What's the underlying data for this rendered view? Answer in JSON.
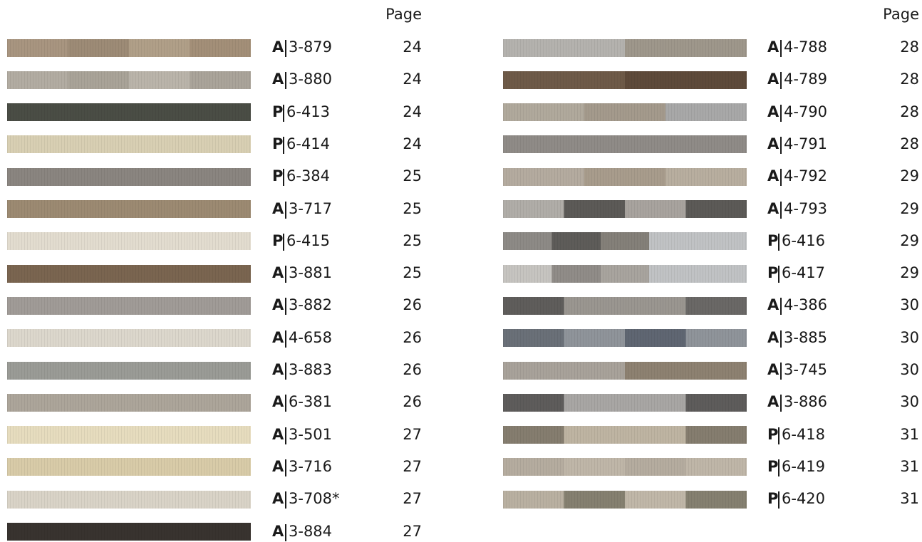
{
  "columns": [
    {
      "header": "Page",
      "rows": [
        {
          "prefix": "A",
          "code": "3-879",
          "page": 24
        },
        {
          "prefix": "A",
          "code": "3-880",
          "page": 24
        },
        {
          "prefix": "P",
          "code": "6-413",
          "page": 24
        },
        {
          "prefix": "P",
          "code": "6-414",
          "page": 24
        },
        {
          "prefix": "P",
          "code": "6-384",
          "page": 25
        },
        {
          "prefix": "A",
          "code": "3-717",
          "page": 25
        },
        {
          "prefix": "P",
          "code": "6-415",
          "page": 25
        },
        {
          "prefix": "A",
          "code": "3-881",
          "page": 25
        },
        {
          "prefix": "A",
          "code": "3-882",
          "page": 26
        },
        {
          "prefix": "A",
          "code": "4-658",
          "page": 26
        },
        {
          "prefix": "A",
          "code": "3-883",
          "page": 26
        },
        {
          "prefix": "A",
          "code": "6-381",
          "page": 26
        },
        {
          "prefix": "A",
          "code": "3-501",
          "page": 27
        },
        {
          "prefix": "A",
          "code": "3-716",
          "page": 27
        },
        {
          "prefix": "A",
          "code": "3-708*",
          "page": 27
        },
        {
          "prefix": "A",
          "code": "3-884",
          "page": 27
        }
      ]
    },
    {
      "header": "Page",
      "rows": [
        {
          "prefix": "A",
          "code": "4-788",
          "page": 28
        },
        {
          "prefix": "A",
          "code": "4-789",
          "page": 28
        },
        {
          "prefix": "A",
          "code": "4-790",
          "page": 28
        },
        {
          "prefix": "A",
          "code": "4-791",
          "page": 28
        },
        {
          "prefix": "A",
          "code": "4-792",
          "page": 29
        },
        {
          "prefix": "A",
          "code": "4-793",
          "page": 29
        },
        {
          "prefix": "P",
          "code": "6-416",
          "page": 29
        },
        {
          "prefix": "P",
          "code": "6-417",
          "page": 29
        },
        {
          "prefix": "A",
          "code": "4-386",
          "page": 30
        },
        {
          "prefix": "A",
          "code": "3-885",
          "page": 30
        },
        {
          "prefix": "A",
          "code": "3-745",
          "page": 30
        },
        {
          "prefix": "A",
          "code": "3-886",
          "page": 30
        },
        {
          "prefix": "P",
          "code": "6-418",
          "page": 31
        },
        {
          "prefix": "P",
          "code": "6-419",
          "page": 31
        },
        {
          "prefix": "P",
          "code": "6-420",
          "page": 31
        }
      ]
    }
  ]
}
